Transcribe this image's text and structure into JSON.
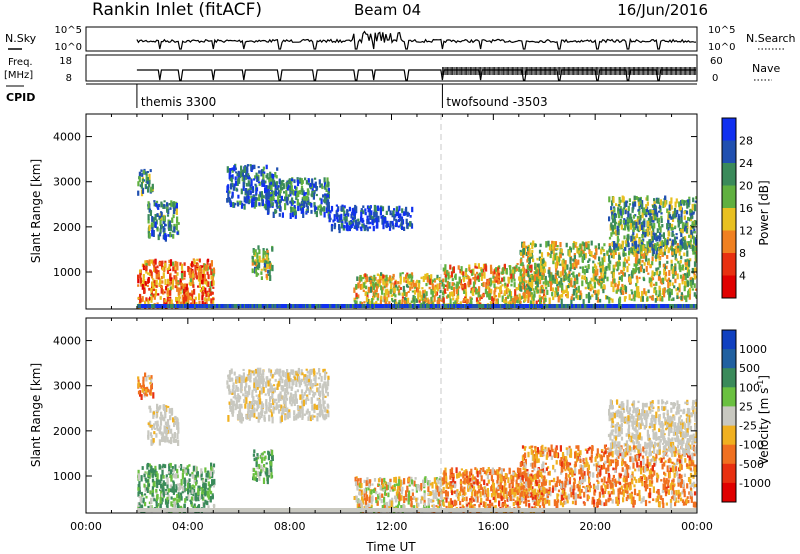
{
  "header": {
    "station": "Rankin Inlet (fitACF)",
    "beam": "Beam 04",
    "date": "16/Jun/2016"
  },
  "aux_panels": {
    "nsky": {
      "left_label": "N.Sky",
      "left_ticks": [
        "10^5",
        "10^0"
      ],
      "right_ticks": [
        "10^5",
        "10^0"
      ],
      "right_label": "N.Search"
    },
    "freq": {
      "left_label_top": "Freq.",
      "left_label_bottom": "[MHz]",
      "left_ticks": [
        "18",
        "8"
      ],
      "right_ticks": [
        "60",
        "0"
      ],
      "right_label": "Nave"
    },
    "cpid": {
      "label": "CPID",
      "modes": [
        {
          "name": "themis 3300",
          "start_hour": 2.0
        },
        {
          "name": "twofsound -3503",
          "start_hour": 14.0
        }
      ]
    }
  },
  "chart_data": [
    {
      "type": "heatmap",
      "title": "Power",
      "xlabel": "",
      "ylabel": "Slant Range [km]",
      "xlim": [
        0,
        24
      ],
      "ylim": [
        180,
        4500
      ],
      "y_ticks": [
        "1000",
        "2000",
        "3000",
        "4000"
      ],
      "colorbar": {
        "label": "Power [dB]",
        "ticks": [
          "4",
          "8",
          "12",
          "16",
          "20",
          "24",
          "28"
        ],
        "colors": [
          "#1030f0",
          "#2050b0",
          "#3a8a5a",
          "#60b040",
          "#e8c020",
          "#f08020",
          "#e83010",
          "#e00000"
        ]
      },
      "echo_regions": [
        {
          "t": [
            2.0,
            2.6
          ],
          "r": [
            2800,
            3300
          ],
          "level": 0.35
        },
        {
          "t": [
            2.4,
            3.6
          ],
          "r": [
            1800,
            2600
          ],
          "level": 0.3
        },
        {
          "t": [
            2.0,
            5.0
          ],
          "r": [
            250,
            1300
          ],
          "level": 0.7
        },
        {
          "t": [
            5.5,
            7.5
          ],
          "r": [
            2500,
            3400
          ],
          "level": 0.2
        },
        {
          "t": [
            7.0,
            9.5
          ],
          "r": [
            2300,
            3100
          ],
          "level": 0.25
        },
        {
          "t": [
            6.5,
            7.3
          ],
          "r": [
            900,
            1600
          ],
          "level": 0.45
        },
        {
          "t": [
            9.5,
            12.8
          ],
          "r": [
            2000,
            2500
          ],
          "level": 0.1
        },
        {
          "t": [
            10.5,
            14.0
          ],
          "r": [
            250,
            1000
          ],
          "level": 0.55
        },
        {
          "t": [
            14.0,
            18.0
          ],
          "r": [
            250,
            1200
          ],
          "level": 0.6
        },
        {
          "t": [
            17.0,
            24.0
          ],
          "r": [
            400,
            1700
          ],
          "level": 0.5
        },
        {
          "t": [
            20.5,
            24.0
          ],
          "r": [
            1500,
            2700
          ],
          "level": 0.35
        }
      ]
    },
    {
      "type": "heatmap",
      "title": "Velocity",
      "xlabel": "Time UT",
      "ylabel": "Slant Range [km]",
      "xlim": [
        0,
        24
      ],
      "ylim": [
        180,
        4500
      ],
      "x_ticks": [
        "00:00",
        "04:00",
        "08:00",
        "12:00",
        "16:00",
        "20:00",
        "00:00"
      ],
      "y_ticks": [
        "1000",
        "2000",
        "3000",
        "4000"
      ],
      "colorbar": {
        "label": "Velocity [m s^-1]",
        "ticks": [
          "1000",
          "500",
          "100",
          "25",
          "-25",
          "-100",
          "-500",
          "-1000"
        ],
        "colors": [
          "#1040c0",
          "#2060a0",
          "#3a8a5a",
          "#6ac040",
          "#c8c8c0",
          "#f0b020",
          "#f07020",
          "#e83010",
          "#e00000"
        ]
      },
      "echo_regions": [
        {
          "t": [
            2.0,
            2.6
          ],
          "r": [
            2800,
            3300
          ],
          "v": "neg"
        },
        {
          "t": [
            2.4,
            3.6
          ],
          "r": [
            1800,
            2600
          ],
          "v": "zero"
        },
        {
          "t": [
            2.0,
            5.0
          ],
          "r": [
            250,
            1300
          ],
          "v": "pos"
        },
        {
          "t": [
            5.5,
            9.5
          ],
          "r": [
            2300,
            3400
          ],
          "v": "zero"
        },
        {
          "t": [
            6.5,
            7.3
          ],
          "r": [
            900,
            1600
          ],
          "v": "pos"
        },
        {
          "t": [
            10.5,
            14.0
          ],
          "r": [
            250,
            1000
          ],
          "v": "mix"
        },
        {
          "t": [
            14.0,
            18.0
          ],
          "r": [
            250,
            1200
          ],
          "v": "neg"
        },
        {
          "t": [
            17.0,
            24.0
          ],
          "r": [
            400,
            1700
          ],
          "v": "neg"
        },
        {
          "t": [
            20.5,
            24.0
          ],
          "r": [
            1500,
            2700
          ],
          "v": "zero"
        }
      ]
    }
  ]
}
